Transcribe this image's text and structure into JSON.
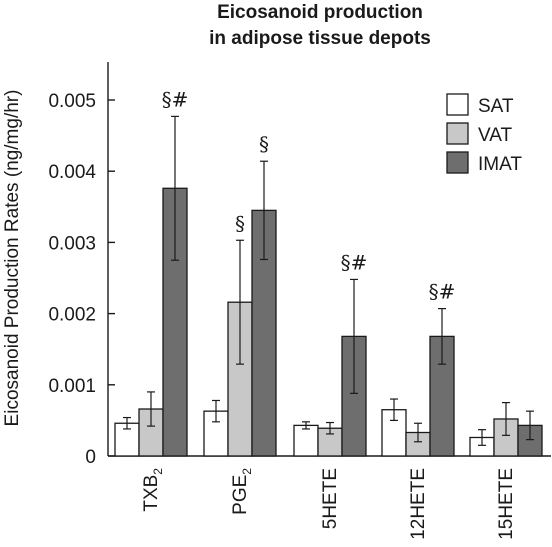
{
  "chart_data": {
    "type": "bar",
    "title": [
      "Eicosanoid production",
      "in adipose tissue depots"
    ],
    "ylabel": "Eicosanoid Production Rates (ng/mg/hr)",
    "xlabel": "",
    "ylim": [
      0,
      0.0055
    ],
    "yticks": [
      0,
      0.001,
      0.002,
      0.003,
      0.004,
      0.005
    ],
    "ytick_labels": [
      "0",
      "0.001",
      "0.002",
      "0.003",
      "0.004",
      "0.005"
    ],
    "categories": [
      {
        "base": "TXB",
        "sub": "2"
      },
      {
        "base": "PGE",
        "sub": "2"
      },
      {
        "base": "5HETE",
        "sub": ""
      },
      {
        "base": "12HETE",
        "sub": ""
      },
      {
        "base": "15HETE",
        "sub": ""
      }
    ],
    "series": [
      {
        "name": "SAT",
        "color": "#ffffff",
        "values": [
          0.00046,
          0.00063,
          0.00043,
          0.00065,
          0.00026
        ],
        "errors": [
          8e-05,
          0.00015,
          5e-05,
          0.00015,
          0.00011
        ]
      },
      {
        "name": "VAT",
        "color": "#c8c8c8",
        "values": [
          0.00066,
          0.00216,
          0.00039,
          0.00033,
          0.00052
        ],
        "errors": [
          0.00024,
          0.00087,
          8e-05,
          0.00013,
          0.00023
        ]
      },
      {
        "name": "IMAT",
        "color": "#6e6e6e",
        "values": [
          0.00376,
          0.00345,
          0.00168,
          0.00168,
          0.00043
        ],
        "errors": [
          0.00101,
          0.00069,
          0.0008,
          0.00039,
          0.0002
        ]
      }
    ],
    "annotations": [
      {
        "category": 0,
        "series": 2,
        "text": "§#"
      },
      {
        "category": 1,
        "series": 1,
        "text": "§"
      },
      {
        "category": 1,
        "series": 2,
        "text": "§"
      },
      {
        "category": 2,
        "series": 2,
        "text": "§#"
      },
      {
        "category": 3,
        "series": 2,
        "text": "§#"
      }
    ],
    "legend_position": "top-right",
    "grid": false
  }
}
